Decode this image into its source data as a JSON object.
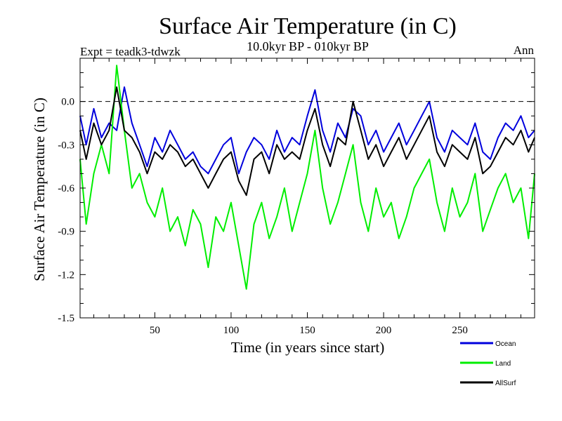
{
  "chart_data": {
    "type": "line",
    "title": "Surface Air Temperature (in C)",
    "subtitle": "10.0kyr BP - 010kyr BP",
    "left_annotation": "Expt = teadk3-tdwzk",
    "right_annotation": "Ann",
    "xlabel": "Time (in years since start)",
    "ylabel": "Surface Air Temperature (in C)",
    "xlim": [
      1,
      299
    ],
    "ylim": [
      -1.5,
      0.3
    ],
    "xticks": [
      50,
      100,
      150,
      200,
      250
    ],
    "yticks": [
      -1.5,
      -1.2,
      -0.9,
      -0.6,
      -0.3,
      0.0
    ],
    "ytick_labels": [
      "-1.5",
      "-1.2",
      "-0.9",
      "-0.6",
      "-0.3",
      "0.0"
    ],
    "zero_line": "dashed",
    "legend_position": "bottom-right",
    "series": [
      {
        "name": "Ocean",
        "color": "#0000dd",
        "x": [
          1,
          5,
          10,
          15,
          20,
          25,
          30,
          35,
          40,
          45,
          50,
          55,
          60,
          65,
          70,
          75,
          80,
          85,
          90,
          95,
          100,
          105,
          110,
          115,
          120,
          125,
          130,
          135,
          140,
          145,
          150,
          155,
          160,
          165,
          170,
          175,
          180,
          185,
          190,
          195,
          200,
          205,
          210,
          215,
          220,
          225,
          230,
          235,
          240,
          245,
          250,
          255,
          260,
          265,
          270,
          275,
          280,
          285,
          290,
          295,
          299
        ],
        "values": [
          -0.1,
          -0.3,
          -0.05,
          -0.25,
          -0.15,
          -0.2,
          0.1,
          -0.15,
          -0.3,
          -0.45,
          -0.25,
          -0.35,
          -0.2,
          -0.3,
          -0.4,
          -0.35,
          -0.45,
          -0.5,
          -0.4,
          -0.3,
          -0.25,
          -0.5,
          -0.35,
          -0.25,
          -0.3,
          -0.4,
          -0.2,
          -0.35,
          -0.25,
          -0.3,
          -0.1,
          0.08,
          -0.2,
          -0.35,
          -0.15,
          -0.25,
          -0.05,
          -0.1,
          -0.3,
          -0.2,
          -0.35,
          -0.25,
          -0.15,
          -0.3,
          -0.2,
          -0.1,
          0.0,
          -0.25,
          -0.35,
          -0.2,
          -0.25,
          -0.3,
          -0.15,
          -0.35,
          -0.4,
          -0.25,
          -0.15,
          -0.2,
          -0.1,
          -0.25,
          -0.2
        ]
      },
      {
        "name": "Land",
        "color": "#00ee00",
        "x": [
          1,
          5,
          10,
          15,
          20,
          25,
          30,
          35,
          40,
          45,
          50,
          55,
          60,
          65,
          70,
          75,
          80,
          85,
          90,
          95,
          100,
          105,
          110,
          115,
          120,
          125,
          130,
          135,
          140,
          145,
          150,
          155,
          160,
          165,
          170,
          175,
          180,
          185,
          190,
          195,
          200,
          205,
          210,
          215,
          220,
          225,
          230,
          235,
          240,
          245,
          250,
          255,
          260,
          265,
          270,
          275,
          280,
          285,
          290,
          295,
          299
        ],
        "values": [
          -0.4,
          -0.85,
          -0.5,
          -0.3,
          -0.5,
          0.25,
          -0.2,
          -0.6,
          -0.5,
          -0.7,
          -0.8,
          -0.6,
          -0.9,
          -0.8,
          -1.0,
          -0.75,
          -0.85,
          -1.15,
          -0.8,
          -0.9,
          -0.7,
          -1.0,
          -1.3,
          -0.85,
          -0.7,
          -0.95,
          -0.8,
          -0.6,
          -0.9,
          -0.7,
          -0.5,
          -0.2,
          -0.6,
          -0.85,
          -0.7,
          -0.5,
          -0.3,
          -0.7,
          -0.9,
          -0.6,
          -0.8,
          -0.7,
          -0.95,
          -0.8,
          -0.6,
          -0.5,
          -0.4,
          -0.7,
          -0.9,
          -0.6,
          -0.8,
          -0.7,
          -0.5,
          -0.9,
          -0.75,
          -0.6,
          -0.5,
          -0.7,
          -0.6,
          -0.95,
          -0.5
        ]
      },
      {
        "name": "AllSurf",
        "color": "#000000",
        "x": [
          1,
          5,
          10,
          15,
          20,
          25,
          30,
          35,
          40,
          45,
          50,
          55,
          60,
          65,
          70,
          75,
          80,
          85,
          90,
          95,
          100,
          105,
          110,
          115,
          120,
          125,
          130,
          135,
          140,
          145,
          150,
          155,
          160,
          165,
          170,
          175,
          180,
          185,
          190,
          195,
          200,
          205,
          210,
          215,
          220,
          225,
          230,
          235,
          240,
          245,
          250,
          255,
          260,
          265,
          270,
          275,
          280,
          285,
          290,
          295,
          299
        ],
        "values": [
          -0.2,
          -0.4,
          -0.15,
          -0.3,
          -0.2,
          0.1,
          -0.2,
          -0.25,
          -0.35,
          -0.5,
          -0.35,
          -0.4,
          -0.3,
          -0.35,
          -0.45,
          -0.4,
          -0.5,
          -0.6,
          -0.5,
          -0.4,
          -0.35,
          -0.55,
          -0.65,
          -0.4,
          -0.35,
          -0.5,
          -0.3,
          -0.4,
          -0.35,
          -0.4,
          -0.2,
          -0.05,
          -0.3,
          -0.45,
          -0.25,
          -0.3,
          0.0,
          -0.2,
          -0.4,
          -0.3,
          -0.45,
          -0.35,
          -0.25,
          -0.4,
          -0.3,
          -0.2,
          -0.1,
          -0.35,
          -0.45,
          -0.3,
          -0.35,
          -0.4,
          -0.25,
          -0.5,
          -0.45,
          -0.35,
          -0.25,
          -0.3,
          -0.2,
          -0.35,
          -0.25
        ]
      }
    ]
  }
}
